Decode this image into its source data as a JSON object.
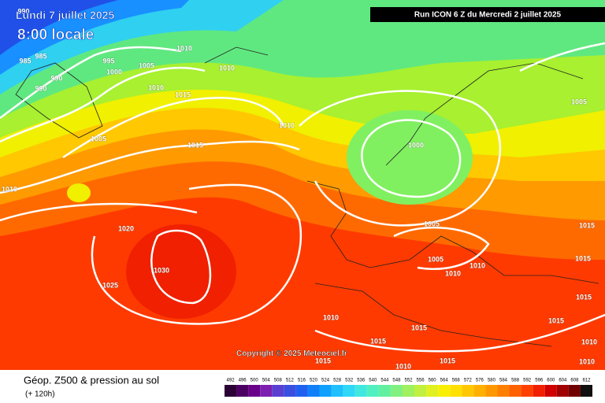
{
  "header": {
    "date": "Lundi 7 juillet 2025",
    "time": "8:00 locale",
    "run": "Run ICON 6 Z du Mercredi 2 juillet 2025"
  },
  "copyright": "Copyright © 2025 Meteociel.fr",
  "footer": {
    "title": "Géop. Z500 & pression au sol",
    "subtitle": "(+ 120h)"
  },
  "legend": {
    "values": [
      492,
      496,
      500,
      504,
      508,
      512,
      516,
      520,
      524,
      528,
      532,
      536,
      540,
      544,
      548,
      552,
      556,
      560,
      564,
      568,
      572,
      576,
      580,
      584,
      588,
      592,
      596,
      600,
      604,
      608,
      612
    ],
    "colors": [
      "#2a0035",
      "#4b0062",
      "#6a008a",
      "#7d1fb0",
      "#5a3fd0",
      "#3a4fe0",
      "#2060f0",
      "#1080f8",
      "#10a0ff",
      "#20c0ff",
      "#30d8f8",
      "#40e8e0",
      "#50f0c0",
      "#60f0a0",
      "#80f080",
      "#a0f060",
      "#c0f040",
      "#e0f020",
      "#f8f000",
      "#ffe000",
      "#ffc800",
      "#ffb000",
      "#ff9800",
      "#ff8000",
      "#ff6000",
      "#ff4000",
      "#f02000",
      "#d00000",
      "#a00000",
      "#700000",
      "#101010"
    ]
  },
  "isobar_labels": [
    "990",
    "985",
    "985",
    "990",
    "990",
    "995",
    "1000",
    "1005",
    "1010",
    "1015",
    "1010",
    "1010",
    "1010",
    "1005",
    "1015",
    "1000",
    "1005",
    "1010",
    "1020",
    "1030",
    "1025",
    "1005",
    "1005",
    "1010",
    "1010",
    "1015",
    "1015",
    "1015",
    "1015",
    "1010",
    "1015",
    "1015",
    "1015",
    "1015",
    "1010",
    "1010",
    "1010"
  ]
}
